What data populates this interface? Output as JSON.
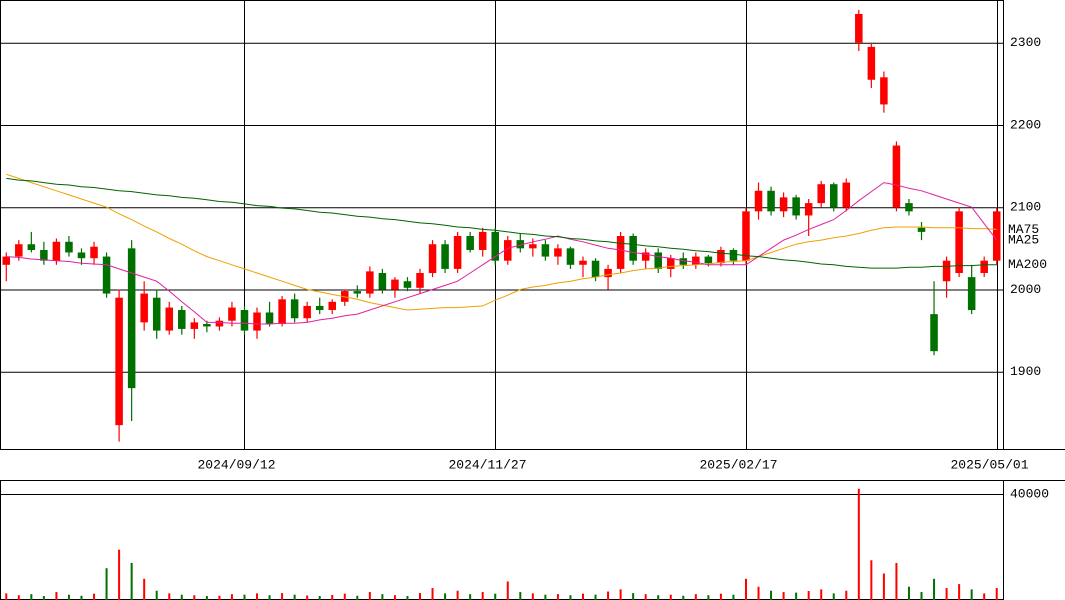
{
  "chart_data": {
    "type": "candlestick",
    "ohlc": [
      [
        2030,
        2045,
        2010,
        2040
      ],
      [
        2040,
        2060,
        2035,
        2055
      ],
      [
        2055,
        2070,
        2045,
        2048
      ],
      [
        2048,
        2058,
        2030,
        2035
      ],
      [
        2035,
        2062,
        2030,
        2058
      ],
      [
        2058,
        2065,
        2040,
        2045
      ],
      [
        2045,
        2050,
        2030,
        2038
      ],
      [
        2038,
        2058,
        2030,
        2052
      ],
      [
        2040,
        2045,
        1990,
        1995
      ],
      [
        1835,
        2000,
        1815,
        1990
      ],
      [
        2050,
        2060,
        1840,
        1880
      ],
      [
        1960,
        2010,
        1950,
        1995
      ],
      [
        1990,
        2000,
        1940,
        1950
      ],
      [
        1950,
        1985,
        1945,
        1978
      ],
      [
        1975,
        1980,
        1945,
        1952
      ],
      [
        1952,
        1965,
        1940,
        1960
      ],
      [
        1958,
        1962,
        1948,
        1955
      ],
      [
        1955,
        1966,
        1950,
        1962
      ],
      [
        1962,
        1985,
        1955,
        1978
      ],
      [
        1975,
        1980,
        1945,
        1950
      ],
      [
        1950,
        1978,
        1940,
        1972
      ],
      [
        1972,
        1985,
        1955,
        1958
      ],
      [
        1958,
        1992,
        1955,
        1988
      ],
      [
        1988,
        1995,
        1960,
        1965
      ],
      [
        1965,
        1985,
        1960,
        1980
      ],
      [
        1980,
        1990,
        1970,
        1975
      ],
      [
        1975,
        1988,
        1970,
        1985
      ],
      [
        1985,
        2000,
        1980,
        1998
      ],
      [
        1998,
        2005,
        1990,
        1995
      ],
      [
        1995,
        2028,
        1990,
        2022
      ],
      [
        2020,
        2025,
        1995,
        2000
      ],
      [
        2000,
        2015,
        1990,
        2012
      ],
      [
        2010,
        2015,
        1998,
        2002
      ],
      [
        2002,
        2025,
        1995,
        2020
      ],
      [
        2020,
        2060,
        2015,
        2055
      ],
      [
        2055,
        2060,
        2020,
        2025
      ],
      [
        2025,
        2070,
        2020,
        2065
      ],
      [
        2065,
        2070,
        2045,
        2048
      ],
      [
        2048,
        2075,
        2040,
        2070
      ],
      [
        2070,
        2075,
        2030,
        2035
      ],
      [
        2035,
        2065,
        2030,
        2060
      ],
      [
        2060,
        2068,
        2045,
        2050
      ],
      [
        2050,
        2062,
        2040,
        2055
      ],
      [
        2055,
        2060,
        2035,
        2040
      ],
      [
        2040,
        2055,
        2030,
        2050
      ],
      [
        2050,
        2052,
        2025,
        2030
      ],
      [
        2030,
        2040,
        2015,
        2035
      ],
      [
        2035,
        2038,
        2010,
        2015
      ],
      [
        2015,
        2030,
        2000,
        2025
      ],
      [
        2025,
        2070,
        2020,
        2065
      ],
      [
        2065,
        2068,
        2030,
        2035
      ],
      [
        2035,
        2050,
        2025,
        2045
      ],
      [
        2045,
        2050,
        2020,
        2025
      ],
      [
        2025,
        2042,
        2015,
        2038
      ],
      [
        2038,
        2045,
        2025,
        2030
      ],
      [
        2030,
        2045,
        2025,
        2040
      ],
      [
        2040,
        2042,
        2028,
        2032
      ],
      [
        2032,
        2052,
        2028,
        2048
      ],
      [
        2048,
        2050,
        2030,
        2035
      ],
      [
        2035,
        2100,
        2030,
        2095
      ],
      [
        2095,
        2130,
        2085,
        2120
      ],
      [
        2120,
        2125,
        2090,
        2095
      ],
      [
        2095,
        2118,
        2088,
        2112
      ],
      [
        2112,
        2115,
        2085,
        2090
      ],
      [
        2090,
        2110,
        2065,
        2105
      ],
      [
        2105,
        2132,
        2100,
        2128
      ],
      [
        2128,
        2130,
        2095,
        2100
      ],
      [
        2100,
        2135,
        2095,
        2130
      ],
      [
        2300,
        2340,
        2290,
        2335
      ],
      [
        2255,
        2300,
        2245,
        2295
      ],
      [
        2225,
        2265,
        2215,
        2258
      ],
      [
        2100,
        2180,
        2095,
        2175
      ],
      [
        2105,
        2110,
        2090,
        2095
      ],
      [
        2075,
        2082,
        2060,
        2070
      ],
      [
        1970,
        2010,
        1920,
        1925
      ],
      [
        2010,
        2040,
        1990,
        2035
      ],
      [
        2020,
        2100,
        2015,
        2095
      ],
      [
        2015,
        2030,
        1970,
        1975
      ],
      [
        2020,
        2040,
        2015,
        2035
      ],
      [
        2035,
        2100,
        2030,
        2095
      ]
    ],
    "up_color": "#ff0000",
    "down_color": "#007000",
    "series": [
      {
        "name": "MA75",
        "color": "#f0a000",
        "values": [
          2140,
          2135,
          2130,
          2125,
          2120,
          2115,
          2110,
          2105,
          2100,
          2092,
          2085,
          2077,
          2070,
          2062,
          2055,
          2047,
          2040,
          2035,
          2030,
          2025,
          2020,
          2015,
          2010,
          2005,
          2000,
          1997,
          1994,
          1991,
          1988,
          1984,
          1981,
          1978,
          1975,
          1976,
          1977,
          1978,
          1978,
          1979,
          1980,
          1987,
          1993,
          2000,
          2003,
          2005,
          2008,
          2010,
          2013,
          2015,
          2018,
          2020,
          2023,
          2025,
          2026,
          2028,
          2029,
          2030,
          2031,
          2033,
          2034,
          2035,
          2040,
          2045,
          2050,
          2055,
          2058,
          2060,
          2063,
          2065,
          2068,
          2072,
          2075,
          2076,
          2076,
          2076,
          2075,
          2075,
          2075,
          2074,
          2074,
          2073
        ]
      },
      {
        "name": "MA25",
        "color": "#e020a0",
        "values": [
          2040,
          2039,
          2037,
          2036,
          2035,
          2034,
          2032,
          2031,
          2030,
          2025,
          2020,
          2015,
          2010,
          1998,
          1985,
          1973,
          1960,
          1960,
          1959,
          1959,
          1958,
          1958,
          1959,
          1959,
          1960,
          1963,
          1965,
          1968,
          1970,
          1975,
          1980,
          1985,
          1990,
          1995,
          2000,
          2005,
          2010,
          2020,
          2030,
          2040,
          2050,
          2054,
          2058,
          2061,
          2065,
          2061,
          2058,
          2054,
          2050,
          2048,
          2045,
          2043,
          2040,
          2038,
          2035,
          2033,
          2030,
          2030,
          2030,
          2030,
          2040,
          2050,
          2060,
          2066,
          2073,
          2079,
          2085,
          2096,
          2108,
          2119,
          2130,
          2127,
          2123,
          2120,
          2115,
          2110,
          2105,
          2100,
          2080,
          2060
        ]
      },
      {
        "name": "MA200",
        "color": "#006400",
        "values": [
          2135,
          2133,
          2132,
          2130,
          2128,
          2127,
          2125,
          2124,
          2122,
          2120,
          2119,
          2117,
          2115,
          2114,
          2112,
          2111,
          2109,
          2107,
          2106,
          2104,
          2102,
          2101,
          2099,
          2098,
          2096,
          2094,
          2093,
          2091,
          2089,
          2088,
          2086,
          2085,
          2083,
          2081,
          2080,
          2078,
          2076,
          2075,
          2073,
          2072,
          2070,
          2068,
          2067,
          2065,
          2064,
          2062,
          2061,
          2059,
          2058,
          2056,
          2055,
          2053,
          2052,
          2050,
          2049,
          2047,
          2046,
          2044,
          2043,
          2041,
          2040,
          2038,
          2036,
          2035,
          2033,
          2031,
          2030,
          2028,
          2027,
          2026,
          2026,
          2026,
          2027,
          2027,
          2028,
          2028,
          2029,
          2029,
          2030,
          2030
        ]
      }
    ],
    "xlim": [
      -0.5,
      79.5
    ],
    "xticks": [
      {
        "value": 19,
        "label": "2024/09/12"
      },
      {
        "value": 39,
        "label": "2024/11/27"
      },
      {
        "value": 59,
        "label": "2025/02/17"
      },
      {
        "value": 79,
        "label": "2025/05/01"
      }
    ],
    "ylim": [
      1806,
      2352
    ],
    "yticks": [
      1900,
      2000,
      2100,
      2200,
      2300
    ],
    "grid": true,
    "volume": {
      "values": [
        2500,
        1800,
        2200,
        1500,
        3000,
        2000,
        1600,
        2400,
        12000,
        19000,
        14000,
        8000,
        3500,
        2500,
        2000,
        1800,
        1500,
        1600,
        2200,
        2000,
        2500,
        1800,
        2600,
        2000,
        1700,
        1500,
        1900,
        2400,
        1600,
        3000,
        2200,
        1800,
        1500,
        2600,
        4500,
        2500,
        3500,
        2200,
        3000,
        2400,
        7000,
        3000,
        2500,
        2000,
        2200,
        1800,
        2400,
        2000,
        3200,
        4000,
        2600,
        2200,
        1800,
        2000,
        1600,
        2200,
        1800,
        2400,
        2000,
        8000,
        5000,
        3500,
        3000,
        2800,
        3400,
        4000,
        2500,
        3500,
        42000,
        15000,
        10000,
        14000,
        5000,
        3000,
        8000,
        4500,
        6000,
        4000,
        2500,
        4500
      ],
      "ylim": [
        0,
        45300
      ],
      "yticks": [
        40000
      ]
    }
  }
}
